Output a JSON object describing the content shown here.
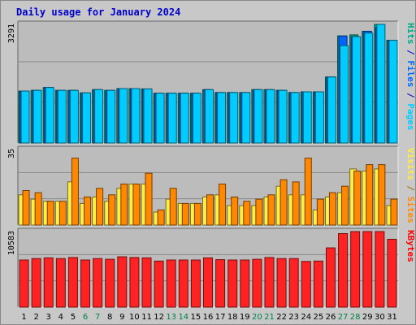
{
  "chart_data": {
    "type": "bar",
    "title": "Daily usage for January 2024",
    "categories": [
      "1",
      "2",
      "3",
      "4",
      "5",
      "6",
      "7",
      "8",
      "9",
      "10",
      "11",
      "12",
      "13",
      "14",
      "15",
      "16",
      "17",
      "18",
      "19",
      "20",
      "21",
      "22",
      "23",
      "24",
      "25",
      "26",
      "27",
      "28",
      "29",
      "30",
      "31"
    ],
    "weekend_days": [
      "6",
      "7",
      "13",
      "14",
      "20",
      "21",
      "27",
      "28"
    ],
    "panels": [
      {
        "name": "hits-files-pages",
        "max_label": "3291",
        "ymax": 3291,
        "legend": [
          {
            "text": "Pages",
            "color": "#00ccff"
          },
          {
            "text": " / ",
            "color": "#0000cc"
          },
          {
            "text": "Files",
            "color": "#0066ff"
          },
          {
            "text": " / ",
            "color": "#0000cc"
          },
          {
            "text": "Hits",
            "color": "#00aa88"
          }
        ],
        "series": [
          {
            "name": "Hits",
            "color": "#00aa88",
            "values": [
              1440,
              1460,
              1540,
              1460,
              1460,
              1390,
              1480,
              1460,
              1510,
              1510,
              1500,
              1380,
              1380,
              1380,
              1380,
              1480,
              1400,
              1400,
              1400,
              1480,
              1480,
              1460,
              1400,
              1420,
              1420,
              1830,
              2970,
              3000,
              3100,
              3291,
              2850
            ]
          },
          {
            "name": "Files",
            "color": "#0066ff",
            "values": [
              1440,
              1460,
              1540,
              1460,
              1460,
              1390,
              1480,
              1460,
              1510,
              1510,
              1500,
              1380,
              1380,
              1380,
              1380,
              1480,
              1400,
              1400,
              1400,
              1480,
              1480,
              1460,
              1400,
              1420,
              1420,
              1830,
              2970,
              2950,
              3100,
              3200,
              2850
            ]
          },
          {
            "name": "Pages",
            "color": "#00ccff",
            "values": [
              1440,
              1460,
              1540,
              1460,
              1460,
              1390,
              1480,
              1460,
              1510,
              1510,
              1500,
              1380,
              1380,
              1380,
              1380,
              1480,
              1400,
              1400,
              1400,
              1480,
              1480,
              1460,
              1400,
              1420,
              1420,
              1830,
              2700,
              2950,
              3050,
              3291,
              2850
            ]
          }
        ]
      },
      {
        "name": "visits-sites",
        "max_label": "35",
        "ymax": 35,
        "legend": [
          {
            "text": "Sites",
            "color": "#ff8800"
          },
          {
            "text": " / ",
            "color": "#aa6600"
          },
          {
            "text": "Visits",
            "color": "#ffee44"
          }
        ],
        "series": [
          {
            "name": "Visits",
            "color": "#ffee44",
            "values": [
              14,
              12,
              11,
              11,
              20,
              10,
              13,
              11,
              17,
              19,
              19,
              6,
              12,
              10,
              10,
              13,
              14,
              9,
              9,
              9,
              13,
              18,
              14,
              14,
              7,
              13,
              15,
              26,
              25,
              26,
              9
            ]
          },
          {
            "name": "Sites",
            "color": "#ff8800",
            "values": [
              16,
              15,
              11,
              11,
              31,
              13,
              17,
              14,
              19,
              19,
              24,
              7,
              17,
              10,
              10,
              14,
              19,
              13,
              11,
              12,
              14,
              21,
              20,
              31,
              12,
              15,
              18,
              25,
              28,
              28,
              12
            ]
          }
        ]
      },
      {
        "name": "kbytes",
        "max_label": "10583",
        "ymax": 10583,
        "legend": [
          {
            "text": "KBytes",
            "color": "#ff0000"
          }
        ],
        "series": [
          {
            "name": "KBytes",
            "color": "#ff2222",
            "values": [
              6600,
              6800,
              6900,
              6800,
              6950,
              6600,
              6800,
              6700,
              7050,
              6950,
              6900,
              6450,
              6600,
              6600,
              6600,
              6900,
              6650,
              6600,
              6600,
              6700,
              6950,
              6800,
              6800,
              6400,
              6450,
              8300,
              10300,
              10583,
              10583,
              10583,
              9500
            ]
          }
        ]
      }
    ]
  }
}
